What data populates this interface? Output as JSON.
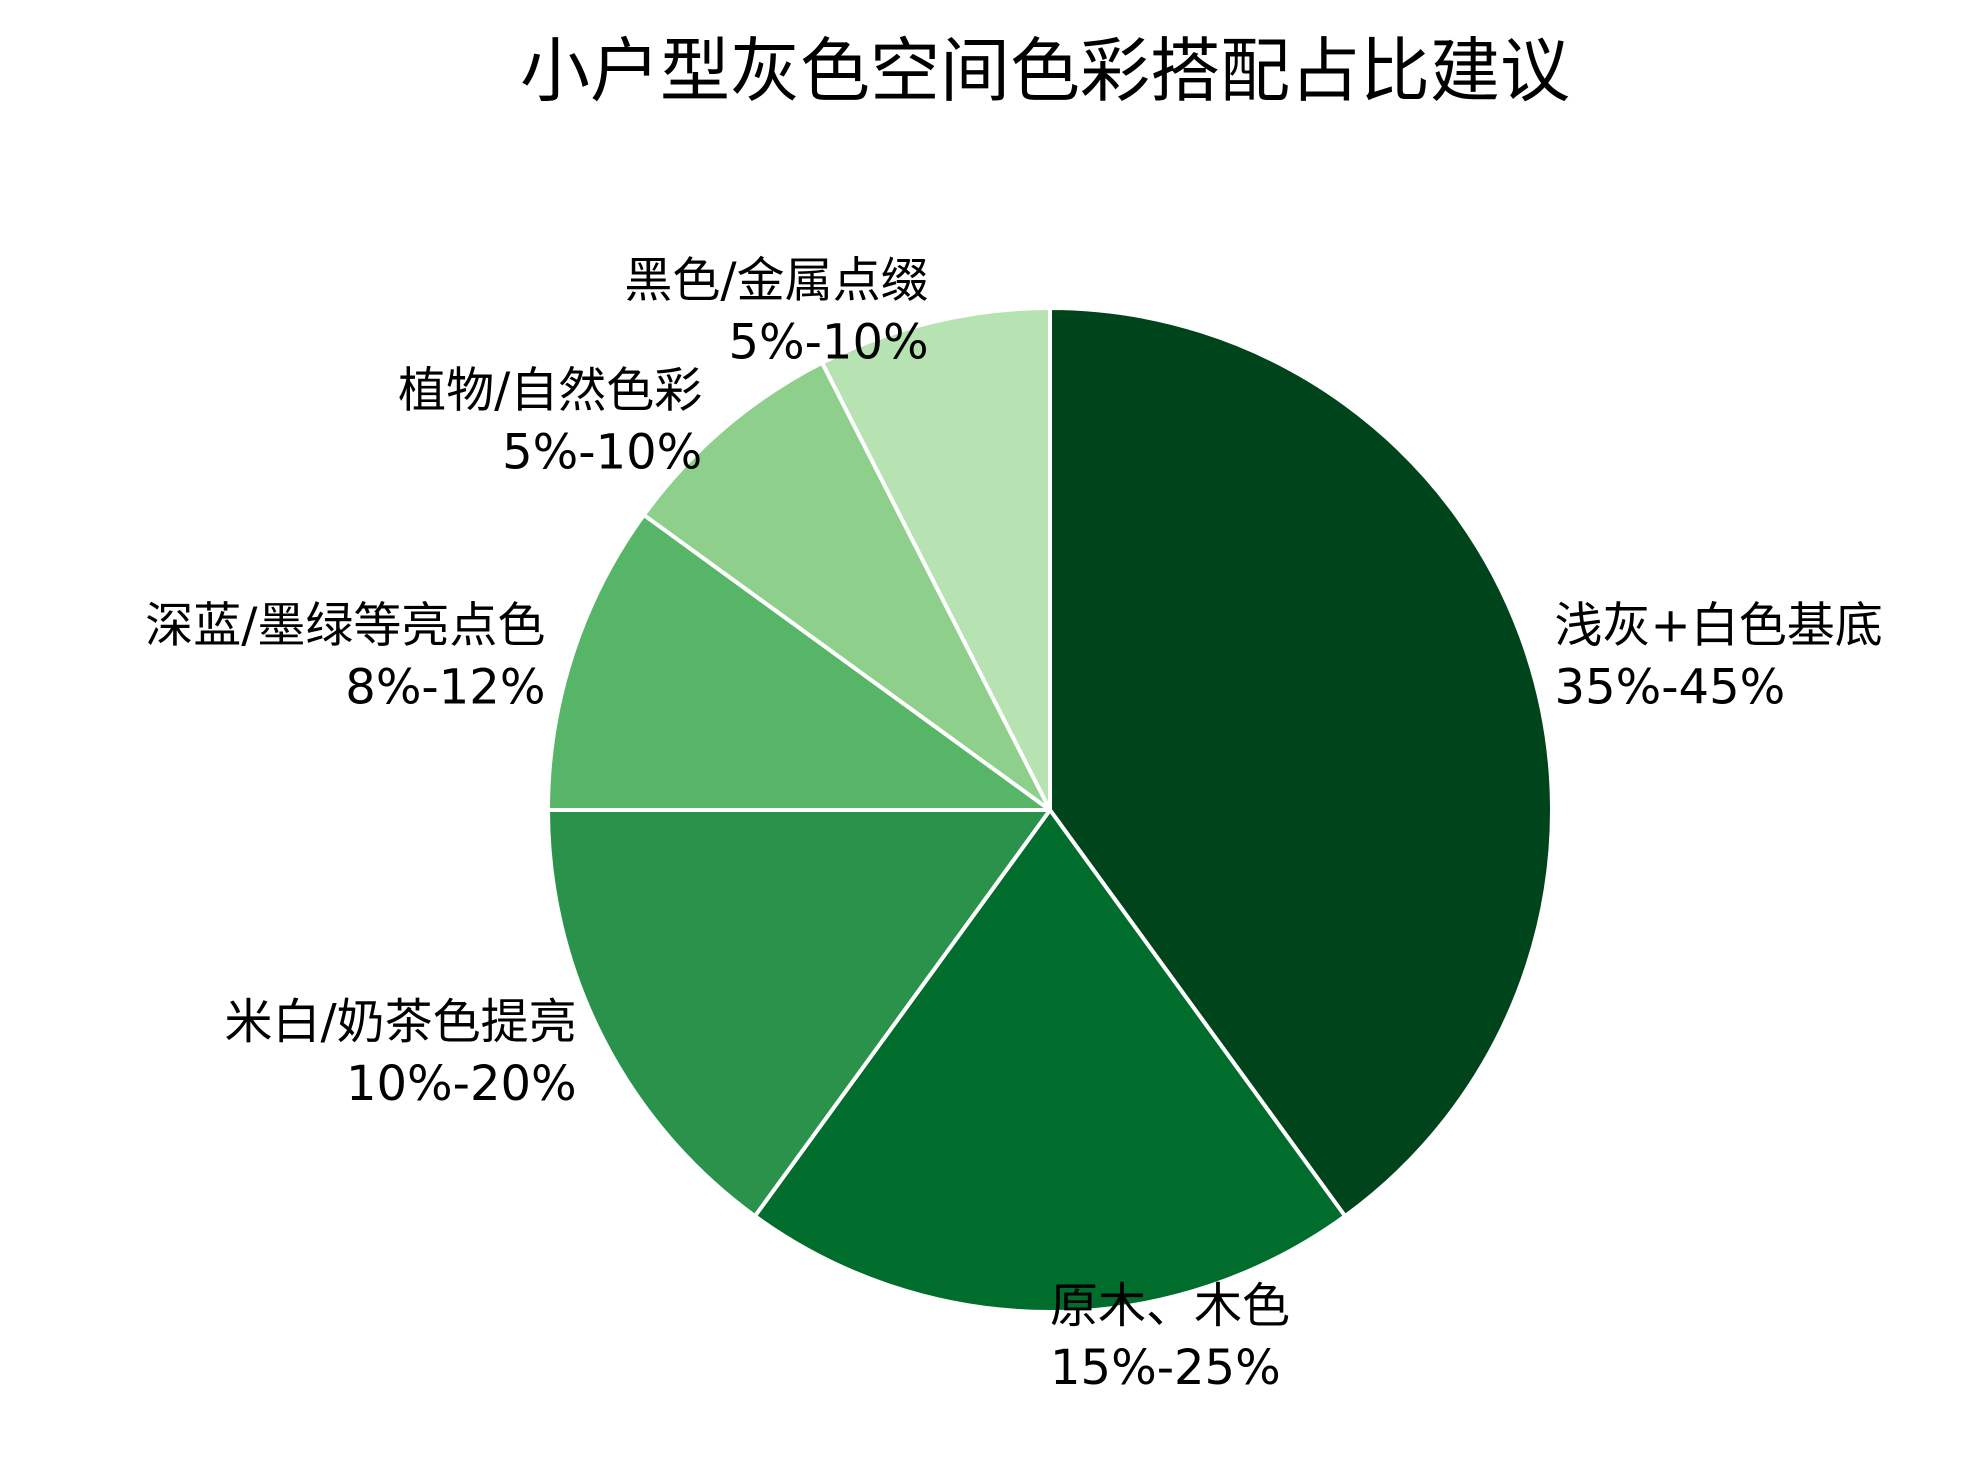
{
  "chart_data": {
    "type": "pie",
    "title": "小户型灰色空间色彩搭配占比建议",
    "start_angle_deg": 0,
    "direction": "clockwise",
    "slices": [
      {
        "label": "浅灰+白色基底",
        "range": "35%-45%",
        "value": 40,
        "color": "#00441b"
      },
      {
        "label": "原木、木色",
        "range": "15%-25%",
        "value": 20,
        "color": "#006d2c"
      },
      {
        "label": "米白/奶茶色提亮",
        "range": "10%-20%",
        "value": 15,
        "color": "#2a924a"
      },
      {
        "label": "深蓝/墨绿等亮点色",
        "range": "8%-12%",
        "value": 10,
        "color": "#56b567"
      },
      {
        "label": "植物/自然色彩",
        "range": "5%-10%",
        "value": 7.5,
        "color": "#8ed08b"
      },
      {
        "label": "黑色/金属点缀",
        "range": "5%-10%",
        "value": 7.5,
        "color": "#b7e2b1"
      }
    ]
  }
}
